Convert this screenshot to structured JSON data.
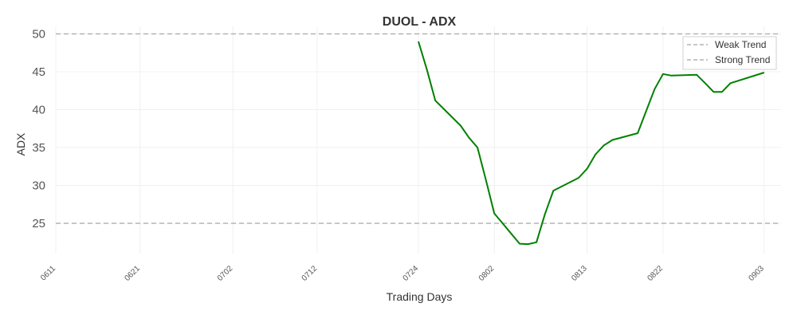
{
  "chart_data": {
    "type": "line",
    "title": "DUOL - ADX",
    "xlabel": "Trading Days",
    "ylabel": "ADX",
    "ylim": [
      21,
      51
    ],
    "xlim": [
      "2024-06-11",
      "2024-09-05"
    ],
    "grid": true,
    "legend_placement": "top-right",
    "y_ticks": [
      25,
      30,
      35,
      40,
      45,
      50
    ],
    "x_ticks": [
      {
        "date": "2024-06-11",
        "label": "0611"
      },
      {
        "date": "2024-06-21",
        "label": "0621"
      },
      {
        "date": "2024-07-02",
        "label": "0702"
      },
      {
        "date": "2024-07-12",
        "label": "0712"
      },
      {
        "date": "2024-07-24",
        "label": "0724"
      },
      {
        "date": "2024-08-02",
        "label": "0802"
      },
      {
        "date": "2024-08-13",
        "label": "0813"
      },
      {
        "date": "2024-08-22",
        "label": "0822"
      },
      {
        "date": "2024-09-03",
        "label": "0903"
      }
    ],
    "series": [
      {
        "color": "#008000",
        "points": [
          {
            "x": "2024-07-24",
            "y": 49.0
          },
          {
            "x": "2024-07-25",
            "y": 45.3
          },
          {
            "x": "2024-07-26",
            "y": 41.2
          },
          {
            "x": "2024-07-29",
            "y": 37.9
          },
          {
            "x": "2024-07-30",
            "y": 36.3
          },
          {
            "x": "2024-07-31",
            "y": 35.0
          },
          {
            "x": "2024-08-01",
            "y": 30.7
          },
          {
            "x": "2024-08-02",
            "y": 26.3
          },
          {
            "x": "2024-08-05",
            "y": 22.3
          },
          {
            "x": "2024-08-06",
            "y": 22.25
          },
          {
            "x": "2024-08-07",
            "y": 22.5
          },
          {
            "x": "2024-08-08",
            "y": 26.2
          },
          {
            "x": "2024-08-09",
            "y": 29.3
          },
          {
            "x": "2024-08-12",
            "y": 31.0
          },
          {
            "x": "2024-08-13",
            "y": 32.2
          },
          {
            "x": "2024-08-14",
            "y": 34.1
          },
          {
            "x": "2024-08-15",
            "y": 35.3
          },
          {
            "x": "2024-08-16",
            "y": 36.0
          },
          {
            "x": "2024-08-19",
            "y": 36.9
          },
          {
            "x": "2024-08-20",
            "y": 39.8
          },
          {
            "x": "2024-08-21",
            "y": 42.7
          },
          {
            "x": "2024-08-22",
            "y": 44.7
          },
          {
            "x": "2024-08-23",
            "y": 44.5
          },
          {
            "x": "2024-08-26",
            "y": 44.6
          },
          {
            "x": "2024-08-27",
            "y": 43.5
          },
          {
            "x": "2024-08-28",
            "y": 42.35
          },
          {
            "x": "2024-08-29",
            "y": 42.35
          },
          {
            "x": "2024-08-30",
            "y": 43.5
          },
          {
            "x": "2024-09-03",
            "y": 44.9
          }
        ]
      }
    ],
    "reference_lines": [
      {
        "name": "Weak Trend",
        "y": 25,
        "color": "#b4b4b4",
        "style": "dashed"
      },
      {
        "name": "Strong Trend",
        "y": 50,
        "color": "#b4b4b4",
        "style": "dashed"
      }
    ]
  }
}
